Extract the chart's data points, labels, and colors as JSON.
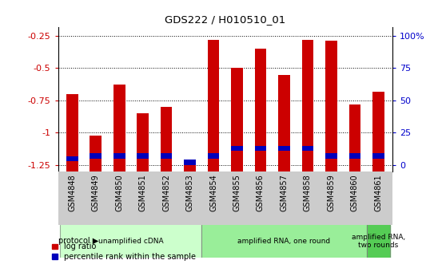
{
  "title": "GDS222 / H010510_01",
  "samples": [
    "GSM4848",
    "GSM4849",
    "GSM4850",
    "GSM4851",
    "GSM4852",
    "GSM4853",
    "GSM4854",
    "GSM4855",
    "GSM4856",
    "GSM4857",
    "GSM4858",
    "GSM4859",
    "GSM4860",
    "GSM4861"
  ],
  "log_ratio": [
    -0.7,
    -1.02,
    -0.63,
    -0.85,
    -0.8,
    -1.22,
    -0.28,
    -0.5,
    -0.35,
    -0.55,
    -0.28,
    -0.29,
    -0.78,
    -0.68
  ],
  "percentile_bottom": [
    -1.22,
    -1.2,
    -1.2,
    -1.2,
    -1.2,
    -1.25,
    -1.2,
    -1.14,
    -1.14,
    -1.14,
    -1.14,
    -1.2,
    -1.2,
    -1.2
  ],
  "percentile_height": [
    0.04,
    0.04,
    0.04,
    0.04,
    0.04,
    0.04,
    0.04,
    0.04,
    0.04,
    0.04,
    0.04,
    0.04,
    0.04,
    0.04
  ],
  "bar_color": "#cc0000",
  "blue_color": "#0000bb",
  "bg_color": "#ffffff",
  "tick_label_color_left": "#cc0000",
  "tick_label_color_right": "#0000cc",
  "ymin": -1.3,
  "ymax": -0.18,
  "yticks": [
    -0.25,
    -0.5,
    -0.75,
    -1.0,
    -1.25
  ],
  "ytick_labels_left": [
    "-0.25",
    "-0.5",
    "-0.75",
    "-1",
    "-1.25"
  ],
  "ytick_labels_right": [
    "100%",
    "75",
    "50",
    "25",
    "0"
  ],
  "protocol_groups": [
    {
      "label": "unamplified cDNA",
      "start": 0,
      "end": 5,
      "color": "#ccffcc"
    },
    {
      "label": "amplified RNA, one round",
      "start": 6,
      "end": 12,
      "color": "#99ee99"
    },
    {
      "label": "amplified RNA,\ntwo rounds",
      "start": 13,
      "end": 13,
      "color": "#55cc55"
    }
  ],
  "bar_width": 0.5,
  "xlabel_band_color": "#cccccc",
  "legend_items": [
    "log ratio",
    "percentile rank within the sample"
  ]
}
